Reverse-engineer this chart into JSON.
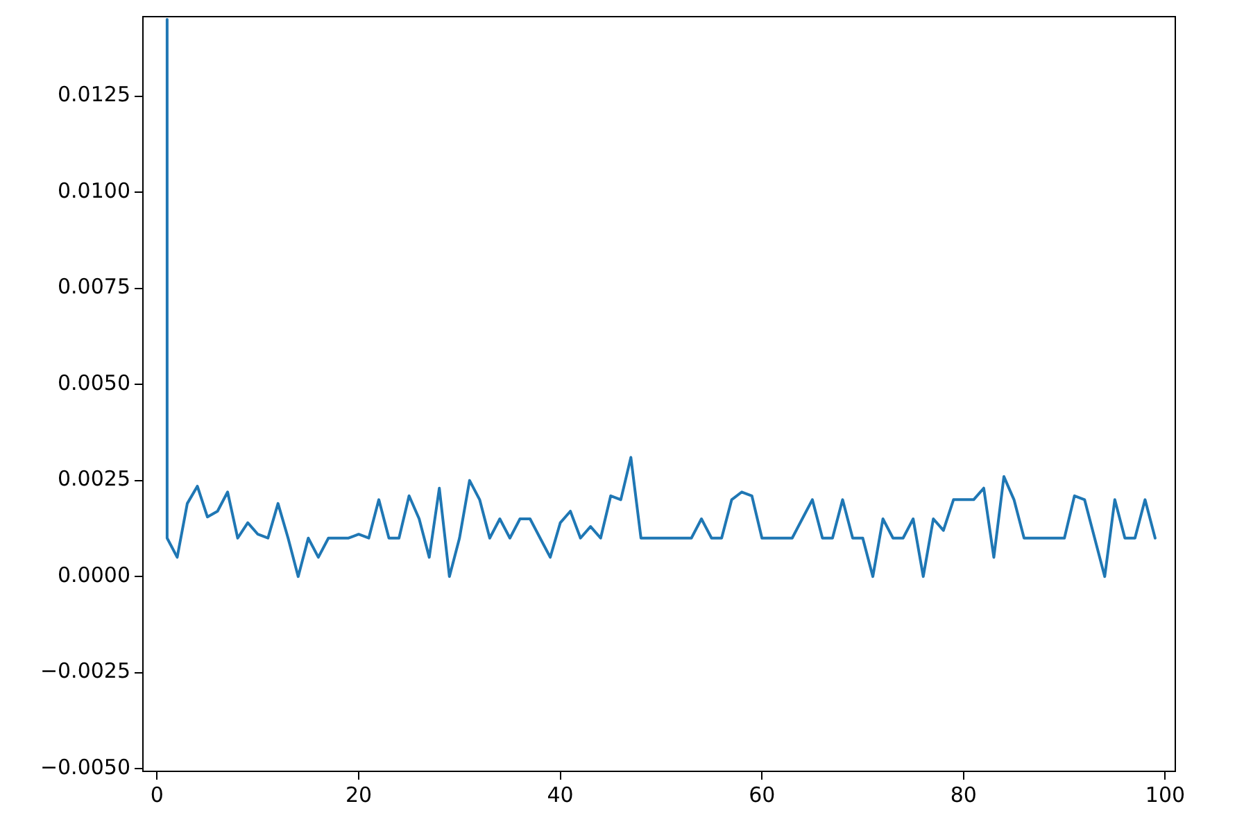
{
  "chart_data": {
    "type": "line",
    "x": [
      1,
      1,
      2,
      3,
      4,
      5,
      6,
      7,
      8,
      9,
      10,
      11,
      12,
      13,
      14,
      15,
      16,
      17,
      18,
      19,
      20,
      21,
      22,
      23,
      24,
      25,
      26,
      27,
      28,
      29,
      30,
      31,
      32,
      33,
      34,
      35,
      36,
      37,
      38,
      39,
      40,
      41,
      42,
      43,
      44,
      45,
      46,
      47,
      48,
      49,
      50,
      51,
      52,
      53,
      54,
      55,
      56,
      57,
      58,
      59,
      60,
      61,
      62,
      63,
      64,
      65,
      66,
      67,
      68,
      69,
      70,
      71,
      72,
      73,
      74,
      75,
      76,
      77,
      78,
      79,
      80,
      81,
      82,
      83,
      84,
      85,
      86,
      87,
      88,
      89,
      90,
      91,
      92,
      93,
      94,
      95,
      96,
      97,
      98,
      99
    ],
    "series": [
      {
        "color": "#1f77b4",
        "values": [
          0.0145,
          0.001,
          0.0005,
          0.0019,
          0.00235,
          0.00155,
          0.0017,
          0.0022,
          0.001,
          0.0014,
          0.0011,
          0.001,
          0.0019,
          0.001,
          0,
          0.001,
          0.0005,
          0.001,
          0.001,
          0.001,
          0.0011,
          0.001,
          0.002,
          0.001,
          0.001,
          0.0021,
          0.0015,
          0.0005,
          0.0023,
          0,
          0.001,
          0.0025,
          0.002,
          0.001,
          0.0015,
          0.001,
          0.0015,
          0.0015,
          0.001,
          0.0005,
          0.0014,
          0.0017,
          0.001,
          0.0013,
          0.001,
          0.0021,
          0.002,
          0.0031,
          0.001,
          0.001,
          0.001,
          0.001,
          0.001,
          0.001,
          0.0015,
          0.001,
          0.001,
          0.002,
          0.0022,
          0.0021,
          0.001,
          0.001,
          0.001,
          0.001,
          0.0015,
          0.002,
          0.001,
          0.001,
          0.002,
          0.001,
          0.001,
          0,
          0.0015,
          0.001,
          0.001,
          0.0015,
          0,
          0.0015,
          0.0012,
          0.002,
          0.002,
          0.002,
          0.0023,
          0.0005,
          0.0026,
          0.002,
          0.001,
          0.001,
          0.001,
          0.001,
          0.001,
          0.0021,
          0.002,
          0.001,
          0,
          0.002,
          0.001,
          0.001,
          0.002,
          0.001
        ]
      }
    ],
    "xlim": [
      -1.4,
      101
    ],
    "ylim": [
      -0.00507,
      0.01457
    ],
    "xticks": [
      0,
      20,
      40,
      60,
      80,
      100
    ],
    "yticks": [
      {
        "value": -0.005,
        "label": "−0.0050"
      },
      {
        "value": -0.0025,
        "label": "−0.0025"
      },
      {
        "value": 0,
        "label": "0.0000"
      },
      {
        "value": 0.0025,
        "label": "0.0025"
      },
      {
        "value": 0.005,
        "label": "0.0050"
      },
      {
        "value": 0.0075,
        "label": "0.0075"
      },
      {
        "value": 0.01,
        "label": "0.0100"
      },
      {
        "value": 0.0125,
        "label": "0.0125"
      }
    ],
    "grid": false,
    "legend": false,
    "marker": "none",
    "line_style": "solid"
  }
}
